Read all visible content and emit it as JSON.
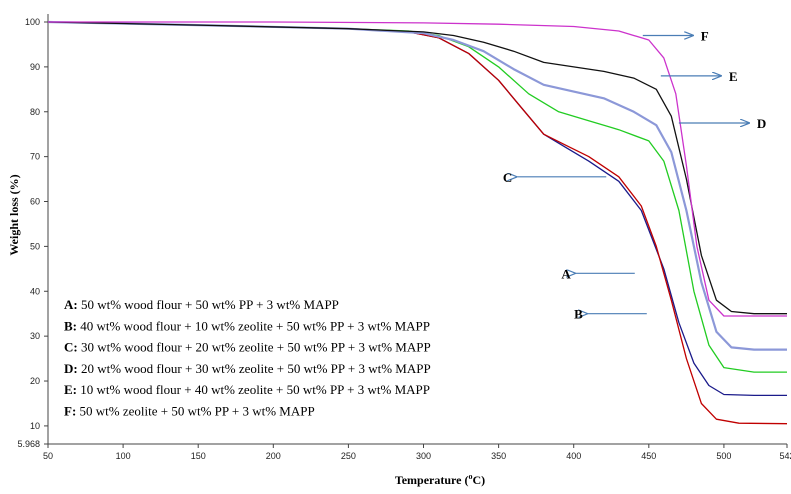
{
  "chart_data": {
    "type": "line",
    "xlabel": "Temperature (",
    "xlabel_sup": "o",
    "xlabel_end": "C)",
    "ylabel": "Weight loss (%)",
    "xlim": [
      50,
      542
    ],
    "ylim": [
      5.968,
      100
    ],
    "x_ticks": [
      50,
      100,
      150,
      200,
      250,
      300,
      350,
      400,
      450,
      500,
      542
    ],
    "y_ticks": [
      5.968,
      10,
      20,
      30,
      40,
      50,
      60,
      70,
      80,
      90,
      100
    ],
    "grid": false,
    "series": [
      {
        "name": "A",
        "color": "#1a1a8a",
        "x": [
          50,
          150,
          250,
          290,
          310,
          330,
          350,
          365,
          380,
          395,
          410,
          430,
          445,
          460,
          470,
          480,
          490,
          500,
          520,
          542
        ],
        "y": [
          100,
          99.3,
          98.5,
          97.8,
          96.5,
          93,
          87,
          81,
          75,
          72,
          69,
          64.5,
          58,
          45,
          33,
          24,
          19,
          17,
          16.8,
          16.8
        ],
        "label_x": 434,
        "label_y": 44
      },
      {
        "name": "B",
        "color": "#c00000",
        "x": [
          50,
          150,
          250,
          290,
          310,
          330,
          350,
          365,
          380,
          395,
          410,
          430,
          445,
          455,
          465,
          475,
          485,
          495,
          510,
          542
        ],
        "y": [
          100,
          99.3,
          98.5,
          97.8,
          96.5,
          93,
          87,
          81,
          75,
          72.5,
          70,
          65.5,
          59,
          50,
          38,
          25,
          15,
          11.5,
          10.6,
          10.5
        ],
        "label_x": 442,
        "label_y": 35
      },
      {
        "name": "C",
        "color": "#22cc22",
        "x": [
          50,
          150,
          250,
          290,
          310,
          330,
          350,
          370,
          390,
          410,
          430,
          450,
          460,
          470,
          480,
          490,
          500,
          520,
          542
        ],
        "y": [
          100,
          99.3,
          98.5,
          98,
          97,
          94.5,
          90,
          84,
          80,
          78,
          76,
          73.5,
          69,
          58,
          40,
          28,
          23,
          22,
          22
        ],
        "label_x": 415,
        "label_y": 65.5
      },
      {
        "name": "D",
        "color": "#8c98d8",
        "x": [
          50,
          150,
          250,
          300,
          320,
          340,
          360,
          380,
          400,
          420,
          440,
          455,
          465,
          475,
          485,
          495,
          505,
          520,
          542
        ],
        "y": [
          100,
          99.3,
          98.5,
          97.5,
          96,
          93.5,
          89.5,
          86,
          84.5,
          83,
          80,
          77,
          71,
          58,
          42,
          31,
          27.5,
          27,
          27
        ],
        "label_x": 470,
        "label_y": 77.5
      },
      {
        "name": "E",
        "color": "#111111",
        "x": [
          50,
          150,
          250,
          300,
          320,
          340,
          360,
          380,
          400,
          420,
          440,
          455,
          465,
          475,
          485,
          495,
          505,
          520,
          542
        ],
        "y": [
          100,
          99.3,
          98.5,
          97.8,
          97,
          95.5,
          93.5,
          91,
          90,
          89,
          87.5,
          85,
          79,
          65,
          48,
          38,
          35.5,
          35,
          35
        ],
        "label_x": 458,
        "label_y": 88
      },
      {
        "name": "F",
        "color": "#cc33cc",
        "x": [
          50,
          200,
          300,
          350,
          400,
          430,
          450,
          460,
          468,
          475,
          482,
          490,
          500,
          520,
          542
        ],
        "y": [
          100,
          100,
          99.8,
          99.5,
          99,
          98,
          96,
          92,
          84,
          68,
          50,
          38,
          34.5,
          34.5,
          34.5
        ],
        "label_x": 446,
        "label_y": 97
      }
    ],
    "legend": [
      {
        "key": "A:",
        "text": " 50 wt% wood flour + 50 wt% PP + 3 wt% MAPP"
      },
      {
        "key": "B:",
        "text": " 40 wt% wood flour + 10 wt% zeolite + 50 wt% PP + 3 wt% MAPP"
      },
      {
        "key": "C:",
        "text": " 30 wt% wood flour + 20 wt% zeolite + 50 wt% PP + 3 wt% MAPP"
      },
      {
        "key": "D:",
        "text": " 20 wt% wood flour + 30 wt% zeolite + 50 wt% PP + 3 wt% MAPP"
      },
      {
        "key": "E:",
        "text": " 10 wt% wood flour + 40 wt% zeolite + 50 wt% PP + 3 wt% MAPP"
      },
      {
        "key": "F:",
        "text": " 50 wt% zeolite + 50 wt% PP + 3 wt% MAPP"
      }
    ],
    "legend_placement": "bottom-left"
  }
}
